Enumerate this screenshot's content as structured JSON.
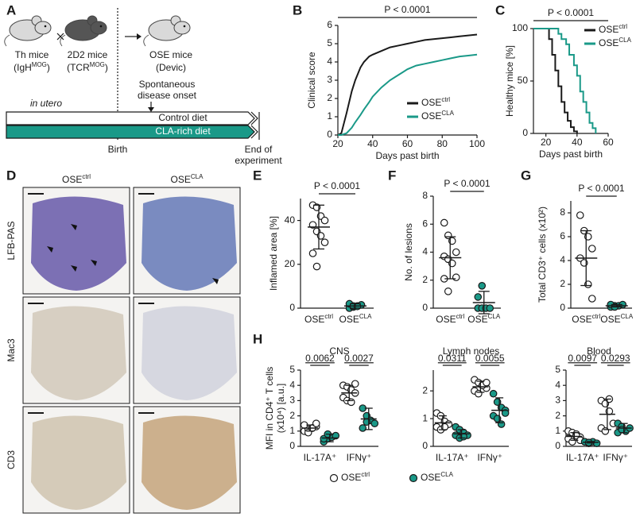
{
  "panel_labels": [
    "A",
    "B",
    "C",
    "D",
    "E",
    "F",
    "G",
    "H"
  ],
  "diagram": {
    "mice": [
      {
        "name": "Th mice",
        "strain": [
          {
            "text": "(IgH"
          },
          {
            "text": "MOG",
            "sup": true
          },
          {
            "text": ")"
          }
        ]
      },
      {
        "name": "2D2 mice",
        "strain": [
          {
            "text": "(TCR"
          },
          {
            "text": "MOG",
            "sup": true
          },
          {
            "text": ")"
          }
        ]
      },
      {
        "name": "OSE mice",
        "strain": [
          {
            "text": "(Devic)"
          }
        ]
      }
    ],
    "onset": [
      "Spontaneous",
      "disease onset"
    ],
    "prenatal": "in utero",
    "diets": [
      "Control diet",
      "CLA-rich diet"
    ],
    "birth": "Birth",
    "end": [
      "End of",
      "experiment"
    ]
  },
  "histology": {
    "columns": [
      [
        {
          "text": "OSE"
        },
        {
          "text": "ctrl",
          "sup": true
        }
      ],
      [
        {
          "text": "OSE"
        },
        {
          "text": "CLA",
          "sup": true
        }
      ]
    ],
    "rows": [
      "LFB-PAS",
      "Mac3",
      "CD3"
    ]
  },
  "chart_data": [
    {
      "type": "line",
      "ylabel": "Clinical score",
      "xlabel": "Days past birth",
      "annotation": "P < 0.0001",
      "x": [
        20,
        22,
        25,
        28,
        30,
        33,
        35,
        38,
        40,
        45,
        50,
        55,
        60,
        65,
        70,
        75,
        80,
        85,
        90,
        95,
        100
      ],
      "series": [
        {
          "name": [
            {
              "text": "OSE"
            },
            {
              "text": "ctrl",
              "sup": true
            }
          ],
          "color": "#1a1a1a",
          "values": [
            0,
            0.1,
            1.2,
            2.4,
            3.0,
            3.7,
            4.0,
            4.3,
            4.4,
            4.6,
            4.8,
            4.9,
            5.0,
            5.1,
            5.2,
            5.25,
            5.3,
            5.35,
            5.4,
            5.45,
            5.5
          ]
        },
        {
          "name": [
            {
              "text": "OSE"
            },
            {
              "text": "CLA",
              "sup": true
            }
          ],
          "color": "#1a9988",
          "values": [
            0,
            0,
            0.1,
            0.4,
            0.7,
            1.1,
            1.4,
            1.8,
            2.1,
            2.6,
            3.0,
            3.3,
            3.6,
            3.8,
            3.9,
            4.0,
            4.1,
            4.2,
            4.3,
            4.35,
            4.4
          ]
        }
      ],
      "xlim": [
        20,
        100
      ],
      "xticks": [
        20,
        40,
        60,
        80,
        100
      ],
      "ylim": [
        0,
        6
      ],
      "yticks": [
        0,
        1,
        2,
        3,
        4,
        5,
        6
      ],
      "legend": "lower right"
    },
    {
      "type": "line",
      "step": true,
      "ylabel": "Healthy mice [%]",
      "xlabel": "Days past birth",
      "annotation": "P < 0.0001",
      "series": [
        {
          "name": [
            {
              "text": "OSE"
            },
            {
              "text": "ctrl",
              "sup": true
            }
          ],
          "color": "#1a1a1a",
          "x": [
            12,
            20,
            22,
            24,
            26,
            28,
            30,
            32,
            34,
            36,
            38,
            40
          ],
          "values": [
            100,
            100,
            90,
            75,
            60,
            45,
            30,
            20,
            12,
            6,
            2,
            0
          ]
        },
        {
          "name": [
            {
              "text": "OSE"
            },
            {
              "text": "CLA",
              "sup": true
            }
          ],
          "color": "#1a9988",
          "x": [
            12,
            25,
            28,
            30,
            33,
            35,
            38,
            40,
            42,
            44,
            46,
            48,
            50,
            52
          ],
          "values": [
            100,
            100,
            95,
            90,
            85,
            75,
            65,
            55,
            40,
            30,
            20,
            10,
            5,
            0
          ]
        }
      ],
      "xlim": [
        12,
        60
      ],
      "xticks": [
        20,
        40,
        60
      ],
      "ylim": [
        0,
        100
      ],
      "yticks": [
        0,
        50,
        100
      ],
      "legend": "upper right"
    },
    {
      "type": "dot",
      "ylabel": "Inflamed area [%]",
      "annotation": "P < 0.0001",
      "series": [
        {
          "name": [
            {
              "text": "OSE"
            },
            {
              "text": "ctrl",
              "sup": true
            }
          ],
          "color": "#ffffff",
          "values": [
            47,
            46,
            42,
            40,
            38,
            35,
            33,
            30,
            25,
            19
          ],
          "mean": 37,
          "sd": 10
        },
        {
          "name": [
            {
              "text": "OSE"
            },
            {
              "text": "CLA",
              "sup": true
            }
          ],
          "color": "#1a9988",
          "values": [
            0,
            0.5,
            1,
            1.5,
            2,
            1,
            0.8
          ],
          "mean": 1,
          "sd": 1
        }
      ],
      "ylim": [
        0,
        50
      ],
      "yticks": [
        0,
        20,
        40
      ]
    },
    {
      "type": "dot",
      "ylabel": "No. of lesions",
      "annotation": "P < 0.0001",
      "series": [
        {
          "name": [
            {
              "text": "OSE"
            },
            {
              "text": "ctrl",
              "sup": true
            }
          ],
          "color": "#ffffff",
          "values": [
            6.1,
            5.2,
            4.8,
            4.0,
            3.7,
            3.5,
            3.2,
            2.2,
            2.1,
            1.2
          ],
          "mean": 3.6,
          "sd": 1.5
        },
        {
          "name": [
            {
              "text": "OSE"
            },
            {
              "text": "CLA",
              "sup": true
            }
          ],
          "color": "#1a9988",
          "values": [
            0,
            0,
            0,
            0,
            0.8,
            1.6
          ],
          "mean": 0.4,
          "sd": 0.8
        }
      ],
      "ylim": [
        0,
        8
      ],
      "yticks": [
        0,
        2,
        4,
        6,
        8
      ]
    },
    {
      "type": "dot",
      "ylabel": "Total CD3⁺ cells (x10²)",
      "annotation": "P < 0.0001",
      "series": [
        {
          "name": [
            {
              "text": "OSE"
            },
            {
              "text": "ctrl",
              "sup": true
            }
          ],
          "color": "#ffffff",
          "values": [
            7.8,
            6.5,
            6.0,
            5.0,
            4.2,
            3.8,
            2.0,
            0.8
          ],
          "mean": 4.2,
          "sd": 2.3
        },
        {
          "name": [
            {
              "text": "OSE"
            },
            {
              "text": "CLA",
              "sup": true
            }
          ],
          "color": "#1a9988",
          "values": [
            0.1,
            0.2,
            0.2,
            0.3,
            0.3,
            0.1
          ],
          "mean": 0.2,
          "sd": 0.1
        }
      ],
      "ylim": [
        0,
        9
      ],
      "yticks": [
        0,
        2,
        4,
        6,
        8
      ]
    },
    {
      "type": "grouped-dot",
      "ylabel": [
        "MFI in CD4⁺ T cells",
        "(x10⁴) [a.u.]"
      ],
      "series": [
        {
          "name": [
            {
              "text": "OSE"
            },
            {
              "text": "ctrl",
              "sup": true
            }
          ],
          "color": "#ffffff"
        },
        {
          "name": [
            {
              "text": "OSE"
            },
            {
              "text": "CLA",
              "sup": true
            }
          ],
          "color": "#1a9988"
        }
      ],
      "panels": [
        {
          "title": "CNS",
          "ylim": [
            0,
            5
          ],
          "yticks": [
            0,
            1,
            2,
            3,
            4,
            5
          ],
          "categories": [
            "IL-17A⁺",
            "IFNγ⁺"
          ],
          "values": [
            [
              [
                1.0,
                1.1,
                1.2,
                1.3,
                1.4,
                0.9,
                1.2,
                1.5
              ],
              [
                0.3,
                0.5,
                0.6,
                0.7,
                0.5,
                0.8
              ]
            ],
            [
              [
                4.0,
                3.9,
                3.7,
                3.5,
                3.2,
                3.0,
                2.9,
                4.1
              ],
              [
                2.5,
                2.0,
                1.7,
                1.5,
                1.2,
                1.6
              ]
            ]
          ],
          "mean": [
            [
              1.2,
              0.55
            ],
            [
              3.5,
              1.8
            ]
          ],
          "sd": [
            [
              0.2,
              0.25
            ],
            [
              0.5,
              0.7
            ]
          ],
          "comparisons": [
            "0.0062",
            "0.0027"
          ]
        },
        {
          "title": "Lymph nodes",
          "ylim": [
            0,
            2.75
          ],
          "yticks": [
            0,
            1,
            2
          ],
          "categories": [
            "IL-17A⁺",
            "IFNγ⁺"
          ],
          "values": [
            [
              [
                1.2,
                1.1,
                0.9,
                0.8,
                0.7,
                0.6,
                0.7
              ],
              [
                0.7,
                0.6,
                0.5,
                0.4,
                0.4,
                0.3,
                0.35
              ]
            ],
            [
              [
                2.4,
                2.3,
                2.2,
                2.1,
                2.0,
                1.9,
                2.2,
                2.3
              ],
              [
                1.9,
                1.6,
                1.4,
                1.3,
                1.1,
                1.0,
                0.8,
                1.2
              ]
            ]
          ],
          "mean": [
            [
              0.85,
              0.45
            ],
            [
              2.15,
              1.3
            ]
          ],
          "sd": [
            [
              0.25,
              0.15
            ],
            [
              0.2,
              0.45
            ]
          ],
          "comparisons": [
            "0.0311",
            "0.0055"
          ]
        },
        {
          "title": "Blood",
          "ylim": [
            0,
            5
          ],
          "yticks": [
            0,
            1,
            2,
            3,
            4,
            5
          ],
          "categories": [
            "IL-17A⁺",
            "IFNγ⁺"
          ],
          "values": [
            [
              [
                1.0,
                0.9,
                0.8,
                0.6,
                0.5,
                0.3,
                0.7,
                0.4
              ],
              [
                0.3,
                0.2,
                0.3,
                0.2,
                0.3,
                0.25
              ]
            ],
            [
              [
                3.0,
                2.8,
                2.3,
                1.5,
                1.2,
                1.0,
                3.1
              ],
              [
                1.5,
                1.3,
                1.0,
                1.2,
                0.9,
                1.1
              ]
            ]
          ],
          "mean": [
            [
              0.65,
              0.27
            ],
            [
              2.1,
              1.2
            ]
          ],
          "sd": [
            [
              0.25,
              0.05
            ],
            [
              1.0,
              0.3
            ]
          ],
          "comparisons": [
            "0.0097",
            "0.0293"
          ]
        }
      ]
    }
  ]
}
